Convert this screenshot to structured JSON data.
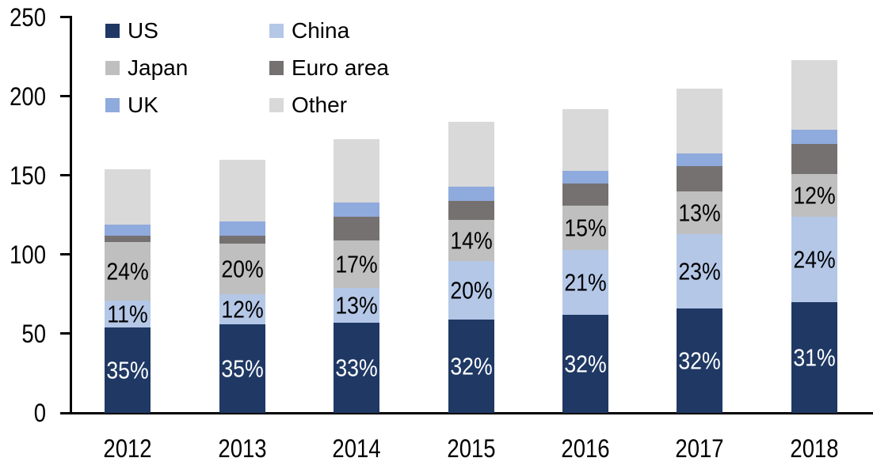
{
  "chart_data": {
    "type": "bar",
    "stacked": true,
    "categories": [
      "2012",
      "2013",
      "2014",
      "2015",
      "2016",
      "2017",
      "2018"
    ],
    "series": [
      {
        "name": "US",
        "color": "#1f3864",
        "label_color": "#ffffff",
        "values": [
          54,
          56,
          57,
          59,
          62,
          66,
          70
        ],
        "segment_labels": [
          "35%",
          "35%",
          "33%",
          "32%",
          "32%",
          "32%",
          "31%"
        ]
      },
      {
        "name": "China",
        "color": "#b4c7e7",
        "label_color": "#000000",
        "values": [
          17,
          19,
          22,
          37,
          41,
          47,
          54
        ],
        "segment_labels": [
          "11%",
          "12%",
          "13%",
          "20%",
          "21%",
          "23%",
          "24%"
        ]
      },
      {
        "name": "Japan",
        "color": "#bfbfbf",
        "label_color": "#000000",
        "values": [
          37,
          32,
          30,
          26,
          28,
          27,
          27
        ],
        "segment_labels": [
          "24%",
          "20%",
          "17%",
          "14%",
          "15%",
          "13%",
          "12%"
        ]
      },
      {
        "name": "Euro area",
        "color": "#767171",
        "label_color": "#000000",
        "values": [
          4,
          5,
          15,
          12,
          14,
          16,
          19
        ],
        "segment_labels": [
          "",
          "",
          "",
          "",
          "",
          "",
          ""
        ]
      },
      {
        "name": "UK",
        "color": "#8faadc",
        "label_color": "#000000",
        "values": [
          7,
          9,
          9,
          9,
          8,
          8,
          9
        ],
        "segment_labels": [
          "",
          "",
          "",
          "",
          "",
          "",
          ""
        ]
      },
      {
        "name": "Other",
        "color": "#d9d9d9",
        "label_color": "#000000",
        "values": [
          35,
          39,
          40,
          41,
          39,
          41,
          44
        ],
        "segment_labels": [
          "",
          "",
          "",
          "",
          "",
          "",
          ""
        ]
      }
    ],
    "totals": [
      154,
      160,
      173,
      184,
      192,
      205,
      223
    ],
    "ylim": [
      0,
      250
    ],
    "yticks": [
      0,
      50,
      100,
      150,
      200,
      250
    ],
    "grid": false,
    "legend": {
      "position": "top-left",
      "columns": 2,
      "order": [
        "US",
        "China",
        "Japan",
        "Euro area",
        "UK",
        "Other"
      ]
    },
    "axis_color": "#000000",
    "background": "#ffffff"
  }
}
